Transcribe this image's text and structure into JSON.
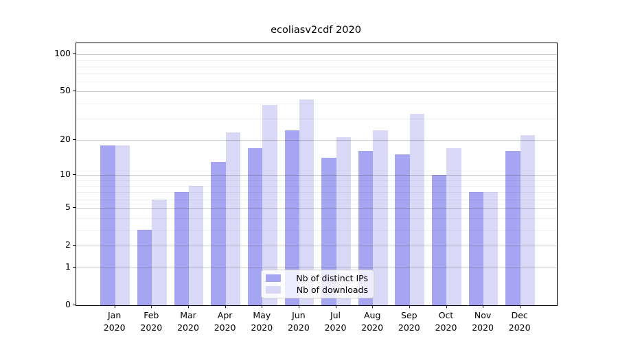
{
  "chart_data": {
    "type": "bar",
    "title": "ecoliasv2cdf 2020",
    "xlabel": "",
    "ylabel": "",
    "y_scale": "log1p",
    "ylim": [
      0,
      123
    ],
    "grid": true,
    "legend_position": "lower-center",
    "y_ticks_major": [
      0,
      1,
      2,
      5,
      10,
      20,
      50,
      100
    ],
    "y_gridlines_major": [
      1,
      2,
      5,
      10,
      20,
      50,
      100
    ],
    "y_gridlines_minor": [
      3,
      4,
      6,
      7,
      8,
      9,
      30,
      40,
      60,
      70,
      80,
      90
    ],
    "categories": [
      "Jan",
      "Feb",
      "Mar",
      "Apr",
      "May",
      "Jun",
      "Jul",
      "Aug",
      "Sep",
      "Oct",
      "Nov",
      "Dec"
    ],
    "category_year": "2020",
    "series": [
      {
        "name": "Nb of distinct IPs",
        "color": "#a5a5f2",
        "values": [
          18,
          3,
          7,
          13,
          17,
          24,
          14,
          16,
          15,
          10,
          7,
          16
        ]
      },
      {
        "name": "Nb of downloads",
        "color": "#d9d9f7",
        "values": [
          18,
          6,
          8,
          23,
          39,
          43,
          21,
          24,
          33,
          17,
          7,
          22
        ]
      }
    ]
  }
}
